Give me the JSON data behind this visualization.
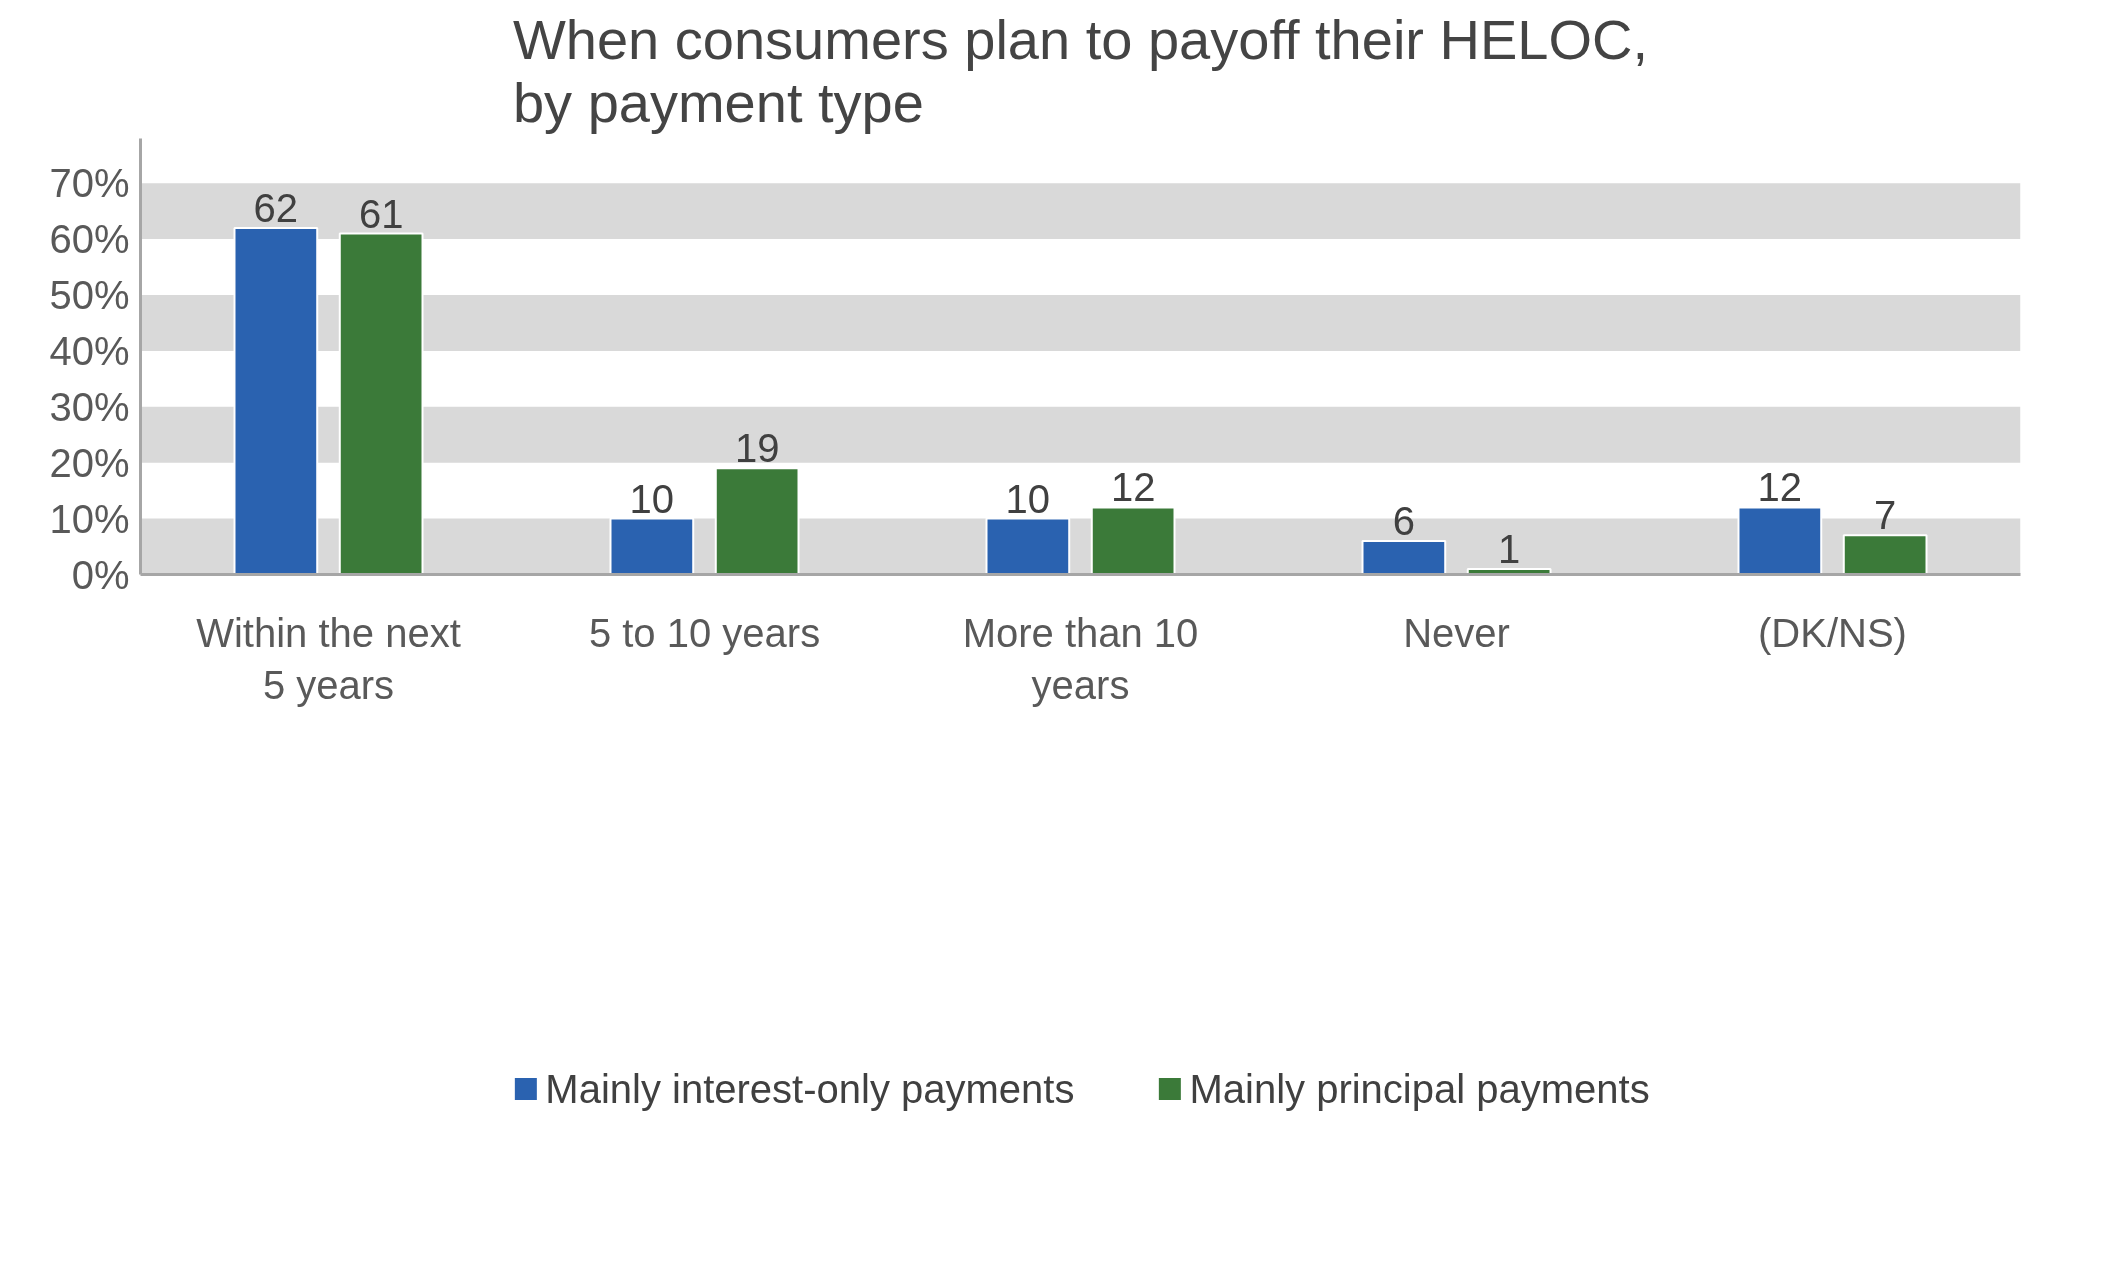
{
  "chart_data": {
    "type": "bar",
    "title": "When consumers plan to payoff their HELOC,\nby payment type",
    "categories": [
      "Within the next 5 years",
      "5 to 10 years",
      "More than 10 years",
      "Never",
      "(DK/NS)"
    ],
    "series": [
      {
        "name": "Mainly interest-only payments",
        "color": "#2a62b0",
        "values": [
          62,
          10,
          10,
          6,
          12
        ]
      },
      {
        "name": "Mainly principal payments",
        "color": "#3b7a39",
        "values": [
          61,
          19,
          12,
          1,
          7
        ]
      }
    ],
    "ylim": [
      0,
      78
    ],
    "yticks": [
      {
        "value": 0,
        "label": "0%"
      },
      {
        "value": 10,
        "label": "10%"
      },
      {
        "value": 20,
        "label": "20%"
      },
      {
        "value": 30,
        "label": "30%"
      },
      {
        "value": 40,
        "label": "40%"
      },
      {
        "value": 50,
        "label": "50%"
      },
      {
        "value": 60,
        "label": "60%"
      },
      {
        "value": 70,
        "label": "70%"
      }
    ],
    "bands": [
      {
        "axis": "y",
        "from": 0,
        "to": 10,
        "color": "#d9d9d9"
      },
      {
        "axis": "y",
        "from": 20,
        "to": 30,
        "color": "#d9d9d9"
      },
      {
        "axis": "y",
        "from": 40,
        "to": 50,
        "color": "#d9d9d9"
      },
      {
        "axis": "y",
        "from": 60,
        "to": 70,
        "color": "#d9d9d9"
      }
    ],
    "grid": false,
    "legend": "bottom",
    "data_labels": true
  }
}
